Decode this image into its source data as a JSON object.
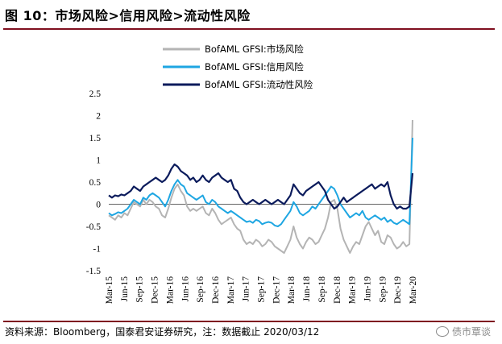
{
  "title": "图 10：市场风险>信用风险>流动性风险",
  "source": "资料来源：Bloomberg，国泰君安证券研究，注：数据截止 2020/03/12",
  "watermark": "债市覃谈",
  "chart_data": {
    "type": "line",
    "y_ticks": [
      "2.5",
      "2",
      "1.5",
      "1",
      "0.5",
      "0",
      "-0.5",
      "-1",
      "-1.5"
    ],
    "ylim": [
      -1.5,
      2.5
    ],
    "x_tick_labels": [
      "Mar-15",
      "Jun-15",
      "Sep-15",
      "Dec-15",
      "Mar-16",
      "Jun-16",
      "Sep-16",
      "Dec-16",
      "Mar-17",
      "Jun-17",
      "Sep-17",
      "Dec-17",
      "Mar-18",
      "Jun-18",
      "Sep-18",
      "Dec-18",
      "Mar-19",
      "Jun-19",
      "Sep-19",
      "Dec-19",
      "Mar-20"
    ],
    "legend_position": "top-center",
    "series": [
      {
        "name": "BofAML GFSI:市场风险",
        "color": "#b4b4b4",
        "values": [
          -0.25,
          -0.3,
          -0.35,
          -0.25,
          -0.3,
          -0.2,
          -0.25,
          -0.1,
          0.05,
          0.0,
          -0.05,
          0.1,
          0.0,
          0.1,
          0.05,
          -0.05,
          -0.1,
          -0.25,
          -0.3,
          -0.1,
          0.15,
          0.35,
          0.45,
          0.3,
          0.2,
          -0.05,
          -0.15,
          -0.1,
          -0.15,
          -0.1,
          -0.05,
          -0.2,
          -0.25,
          -0.1,
          -0.2,
          -0.35,
          -0.45,
          -0.4,
          -0.35,
          -0.3,
          -0.45,
          -0.55,
          -0.6,
          -0.8,
          -0.9,
          -0.85,
          -0.9,
          -0.8,
          -0.85,
          -0.95,
          -0.9,
          -0.8,
          -0.85,
          -0.95,
          -1.0,
          -1.05,
          -1.1,
          -0.95,
          -0.8,
          -0.5,
          -0.75,
          -0.9,
          -1.0,
          -0.85,
          -0.75,
          -0.8,
          -0.9,
          -0.85,
          -0.7,
          -0.55,
          -0.3,
          0.05,
          0.1,
          -0.1,
          -0.55,
          -0.8,
          -0.95,
          -1.1,
          -0.95,
          -0.85,
          -0.9,
          -0.7,
          -0.5,
          -0.4,
          -0.55,
          -0.7,
          -0.6,
          -0.85,
          -0.9,
          -0.7,
          -0.75,
          -0.9,
          -1.0,
          -0.95,
          -0.85,
          -0.95,
          -0.9,
          1.9
        ]
      },
      {
        "name": "BofAML GFSI:信用风险",
        "color": "#1ea6e2",
        "values": [
          -0.2,
          -0.25,
          -0.22,
          -0.18,
          -0.2,
          -0.15,
          -0.1,
          0.0,
          0.1,
          0.05,
          0.0,
          0.15,
          0.1,
          0.2,
          0.25,
          0.2,
          0.15,
          0.05,
          -0.05,
          0.1,
          0.3,
          0.45,
          0.55,
          0.45,
          0.4,
          0.25,
          0.2,
          0.15,
          0.1,
          0.15,
          0.2,
          0.05,
          0.0,
          0.1,
          0.05,
          -0.05,
          -0.1,
          -0.15,
          -0.2,
          -0.15,
          -0.2,
          -0.25,
          -0.3,
          -0.35,
          -0.4,
          -0.38,
          -0.42,
          -0.35,
          -0.38,
          -0.45,
          -0.42,
          -0.4,
          -0.42,
          -0.48,
          -0.5,
          -0.45,
          -0.35,
          -0.25,
          -0.15,
          0.05,
          -0.05,
          -0.2,
          -0.25,
          -0.2,
          -0.15,
          -0.05,
          -0.1,
          0.0,
          0.1,
          0.2,
          0.3,
          0.4,
          0.35,
          0.2,
          0.0,
          -0.1,
          -0.2,
          -0.3,
          -0.25,
          -0.2,
          -0.25,
          -0.15,
          -0.3,
          -0.35,
          -0.3,
          -0.25,
          -0.3,
          -0.35,
          -0.3,
          -0.4,
          -0.35,
          -0.42,
          -0.45,
          -0.4,
          -0.35,
          -0.4,
          -0.45,
          1.5
        ]
      },
      {
        "name": "BofAML GFSI:流动性风险",
        "color": "#0b1b5c",
        "values": [
          0.2,
          0.15,
          0.2,
          0.18,
          0.22,
          0.2,
          0.25,
          0.3,
          0.4,
          0.35,
          0.3,
          0.4,
          0.45,
          0.5,
          0.55,
          0.6,
          0.55,
          0.5,
          0.55,
          0.65,
          0.8,
          0.9,
          0.85,
          0.75,
          0.7,
          0.65,
          0.55,
          0.6,
          0.5,
          0.55,
          0.65,
          0.55,
          0.5,
          0.6,
          0.65,
          0.7,
          0.6,
          0.55,
          0.5,
          0.55,
          0.35,
          0.3,
          0.15,
          0.05,
          0.0,
          0.05,
          0.1,
          0.05,
          0.0,
          0.05,
          0.1,
          0.05,
          0.0,
          0.05,
          0.1,
          0.05,
          0.0,
          0.1,
          0.2,
          0.45,
          0.35,
          0.25,
          0.2,
          0.3,
          0.35,
          0.4,
          0.45,
          0.5,
          0.4,
          0.3,
          0.1,
          0.0,
          -0.1,
          -0.05,
          0.05,
          0.15,
          0.05,
          0.1,
          0.15,
          0.2,
          0.25,
          0.3,
          0.35,
          0.4,
          0.45,
          0.35,
          0.4,
          0.45,
          0.4,
          0.5,
          0.2,
          0.0,
          -0.1,
          -0.05,
          -0.1,
          -0.1,
          -0.05,
          0.7
        ]
      }
    ]
  }
}
